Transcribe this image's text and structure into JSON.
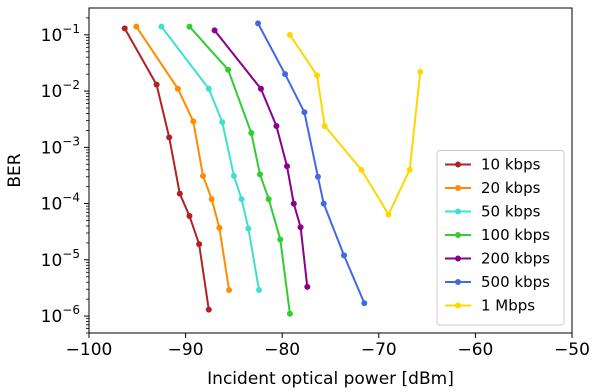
{
  "chart_data": {
    "type": "line",
    "title": "",
    "xlabel": "Incident optical power [dBm]",
    "ylabel": "BER",
    "xlim": [
      -100,
      -50
    ],
    "ylim": [
      5e-07,
      0.3
    ],
    "yscale": "log",
    "x_ticks": [
      -100,
      -90,
      -80,
      -70,
      -60,
      -50
    ],
    "x_tick_labels": [
      "−100",
      "−90",
      "−80",
      "−70",
      "−60",
      "−50"
    ],
    "y_ticks": [
      1e-06,
      1e-05,
      0.0001,
      0.001,
      0.01,
      0.1
    ],
    "y_tick_labels": [
      {
        "base": "10",
        "exp": "−6"
      },
      {
        "base": "10",
        "exp": "−5"
      },
      {
        "base": "10",
        "exp": "−4"
      },
      {
        "base": "10",
        "exp": "−3"
      },
      {
        "base": "10",
        "exp": "−2"
      },
      {
        "base": "10",
        "exp": "−1"
      }
    ],
    "grid": false,
    "legend_position": "lower-right",
    "series": [
      {
        "name": "10 kbps",
        "color": "#b22222",
        "x": [
          -96.3,
          -93.0,
          -91.7,
          -90.6,
          -89.6,
          -88.6,
          -87.6
        ],
        "y": [
          0.13,
          0.013,
          0.0015,
          0.00015,
          6e-05,
          1.9e-05,
          1.3e-06
        ]
      },
      {
        "name": "20 kbps",
        "color": "#ff8c00",
        "x": [
          -95.1,
          -90.8,
          -89.2,
          -88.2,
          -87.3,
          -86.5,
          -85.5
        ],
        "y": [
          0.14,
          0.011,
          0.0029,
          0.00031,
          0.00012,
          3.7e-05,
          2.9e-06
        ]
      },
      {
        "name": "50 kbps",
        "color": "#40e0d0",
        "x": [
          -92.5,
          -87.6,
          -86.2,
          -85.0,
          -84.2,
          -83.5,
          -82.4
        ],
        "y": [
          0.14,
          0.011,
          0.0028,
          0.00031,
          0.00012,
          3.6e-05,
          2.9e-06
        ]
      },
      {
        "name": "100 kbps",
        "color": "#32cd32",
        "x": [
          -89.6,
          -85.6,
          -83.2,
          -82.3,
          -81.4,
          -80.2,
          -79.2
        ],
        "y": [
          0.14,
          0.024,
          0.0018,
          0.00033,
          0.00012,
          2.3e-05,
          1.1e-06
        ]
      },
      {
        "name": "200 kbps",
        "color": "#8b008b",
        "x": [
          -87.0,
          -82.2,
          -80.6,
          -79.5,
          -78.8,
          -78.1,
          -77.4
        ],
        "y": [
          0.12,
          0.011,
          0.0024,
          0.00046,
          0.0001,
          3.8e-05,
          3.3e-06
        ]
      },
      {
        "name": "500 kbps",
        "color": "#4169e1",
        "x": [
          -82.5,
          -79.7,
          -77.7,
          -76.3,
          -75.7,
          -73.6,
          -71.5
        ],
        "y": [
          0.16,
          0.02,
          0.0042,
          0.0003,
          0.0001,
          1.2e-05,
          1.7e-06
        ]
      },
      {
        "name": "1 Mbps",
        "color": "#ffd700",
        "x": [
          -79.2,
          -76.4,
          -75.6,
          -71.8,
          -69.0,
          -66.8,
          -65.7
        ],
        "y": [
          0.1,
          0.019,
          0.0024,
          0.0004,
          6.4e-05,
          0.0004,
          0.022
        ]
      }
    ]
  }
}
